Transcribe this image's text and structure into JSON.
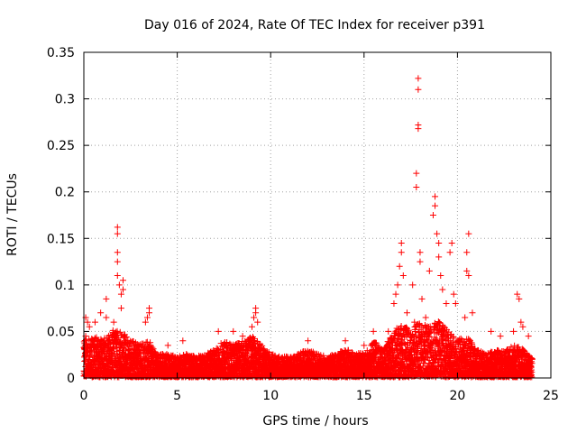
{
  "chart_data": {
    "type": "scatter",
    "title": "Day 016 of 2024, Rate Of TEC Index for receiver p391",
    "xlabel": "GPS time / hours",
    "ylabel": "ROTI / TECUs",
    "xlim": [
      0,
      25
    ],
    "ylim": [
      0,
      0.35
    ],
    "xticks": [
      "0",
      "5",
      "10",
      "15",
      "20",
      "25"
    ],
    "yticks": [
      "0",
      "0.05",
      "0.1",
      "0.15",
      "0.2",
      "0.25",
      "0.3",
      "0.35"
    ],
    "grid": true,
    "marker": "plus",
    "color": "#ff0000",
    "series": [
      {
        "name": "",
        "points": [
          [
            0.1,
            0.045
          ],
          [
            0.1,
            0.065
          ],
          [
            0.2,
            0.06
          ],
          [
            0.3,
            0.055
          ],
          [
            0.6,
            0.06
          ],
          [
            0.9,
            0.07
          ],
          [
            1.2,
            0.065
          ],
          [
            1.2,
            0.085
          ],
          [
            1.6,
            0.06
          ],
          [
            1.8,
            0.11
          ],
          [
            1.8,
            0.125
          ],
          [
            1.8,
            0.135
          ],
          [
            1.8,
            0.155
          ],
          [
            1.8,
            0.162
          ],
          [
            1.9,
            0.1
          ],
          [
            2.0,
            0.09
          ],
          [
            2.1,
            0.095
          ],
          [
            2.1,
            0.105
          ],
          [
            2.0,
            0.075
          ],
          [
            3.3,
            0.06
          ],
          [
            3.4,
            0.065
          ],
          [
            3.5,
            0.07
          ],
          [
            3.5,
            0.075
          ],
          [
            4.5,
            0.035
          ],
          [
            5.3,
            0.04
          ],
          [
            7.2,
            0.05
          ],
          [
            8.0,
            0.05
          ],
          [
            8.5,
            0.045
          ],
          [
            9.0,
            0.055
          ],
          [
            9.1,
            0.065
          ],
          [
            9.2,
            0.07
          ],
          [
            9.2,
            0.075
          ],
          [
            9.3,
            0.06
          ],
          [
            12.0,
            0.04
          ],
          [
            14.0,
            0.04
          ],
          [
            15.0,
            0.035
          ],
          [
            15.5,
            0.05
          ],
          [
            16.3,
            0.05
          ],
          [
            16.6,
            0.08
          ],
          [
            16.7,
            0.09
          ],
          [
            16.8,
            0.1
          ],
          [
            16.9,
            0.12
          ],
          [
            17.0,
            0.135
          ],
          [
            17.0,
            0.145
          ],
          [
            17.1,
            0.11
          ],
          [
            17.3,
            0.07
          ],
          [
            17.6,
            0.1
          ],
          [
            17.7,
            0.06
          ],
          [
            17.8,
            0.205
          ],
          [
            17.8,
            0.22
          ],
          [
            17.9,
            0.268
          ],
          [
            17.9,
            0.272
          ],
          [
            17.9,
            0.31
          ],
          [
            17.9,
            0.322
          ],
          [
            18.0,
            0.135
          ],
          [
            18.0,
            0.125
          ],
          [
            18.1,
            0.085
          ],
          [
            18.3,
            0.065
          ],
          [
            18.5,
            0.115
          ],
          [
            18.7,
            0.175
          ],
          [
            18.8,
            0.185
          ],
          [
            18.8,
            0.195
          ],
          [
            18.9,
            0.155
          ],
          [
            19.0,
            0.13
          ],
          [
            19.0,
            0.145
          ],
          [
            19.1,
            0.11
          ],
          [
            19.2,
            0.095
          ],
          [
            19.4,
            0.08
          ],
          [
            19.6,
            0.135
          ],
          [
            19.7,
            0.145
          ],
          [
            19.8,
            0.09
          ],
          [
            19.9,
            0.08
          ],
          [
            20.4,
            0.065
          ],
          [
            20.5,
            0.115
          ],
          [
            20.5,
            0.135
          ],
          [
            20.6,
            0.155
          ],
          [
            20.6,
            0.11
          ],
          [
            20.8,
            0.07
          ],
          [
            21.8,
            0.05
          ],
          [
            22.3,
            0.045
          ],
          [
            23.0,
            0.05
          ],
          [
            23.2,
            0.09
          ],
          [
            23.3,
            0.085
          ],
          [
            23.4,
            0.06
          ],
          [
            23.5,
            0.055
          ],
          [
            23.8,
            0.045
          ],
          [
            24.0,
            0.02
          ]
        ]
      }
    ],
    "envelope": [
      [
        0,
        0.04
      ],
      [
        0.5,
        0.045
      ],
      [
        1.0,
        0.04
      ],
      [
        1.5,
        0.05
      ],
      [
        2.0,
        0.05
      ],
      [
        2.5,
        0.04
      ],
      [
        3.0,
        0.035
      ],
      [
        3.5,
        0.04
      ],
      [
        4.0,
        0.025
      ],
      [
        4.5,
        0.025
      ],
      [
        5.0,
        0.022
      ],
      [
        5.5,
        0.025
      ],
      [
        6.0,
        0.022
      ],
      [
        6.5,
        0.025
      ],
      [
        7.0,
        0.03
      ],
      [
        7.5,
        0.04
      ],
      [
        8.0,
        0.035
      ],
      [
        8.5,
        0.04
      ],
      [
        9.0,
        0.045
      ],
      [
        9.5,
        0.035
      ],
      [
        10.0,
        0.025
      ],
      [
        10.5,
        0.022
      ],
      [
        11.0,
        0.022
      ],
      [
        11.5,
        0.025
      ],
      [
        12.0,
        0.03
      ],
      [
        12.5,
        0.025
      ],
      [
        13.0,
        0.022
      ],
      [
        13.5,
        0.025
      ],
      [
        14.0,
        0.03
      ],
      [
        14.5,
        0.028
      ],
      [
        15.0,
        0.025
      ],
      [
        15.5,
        0.04
      ],
      [
        16.0,
        0.03
      ],
      [
        16.5,
        0.045
      ],
      [
        17.0,
        0.06
      ],
      [
        17.5,
        0.05
      ],
      [
        18.0,
        0.06
      ],
      [
        18.5,
        0.055
      ],
      [
        19.0,
        0.06
      ],
      [
        19.5,
        0.05
      ],
      [
        20.0,
        0.04
      ],
      [
        20.5,
        0.045
      ],
      [
        21.0,
        0.03
      ],
      [
        21.5,
        0.025
      ],
      [
        22.0,
        0.03
      ],
      [
        22.5,
        0.028
      ],
      [
        23.0,
        0.035
      ],
      [
        23.5,
        0.03
      ],
      [
        24.0,
        0.02
      ]
    ]
  }
}
